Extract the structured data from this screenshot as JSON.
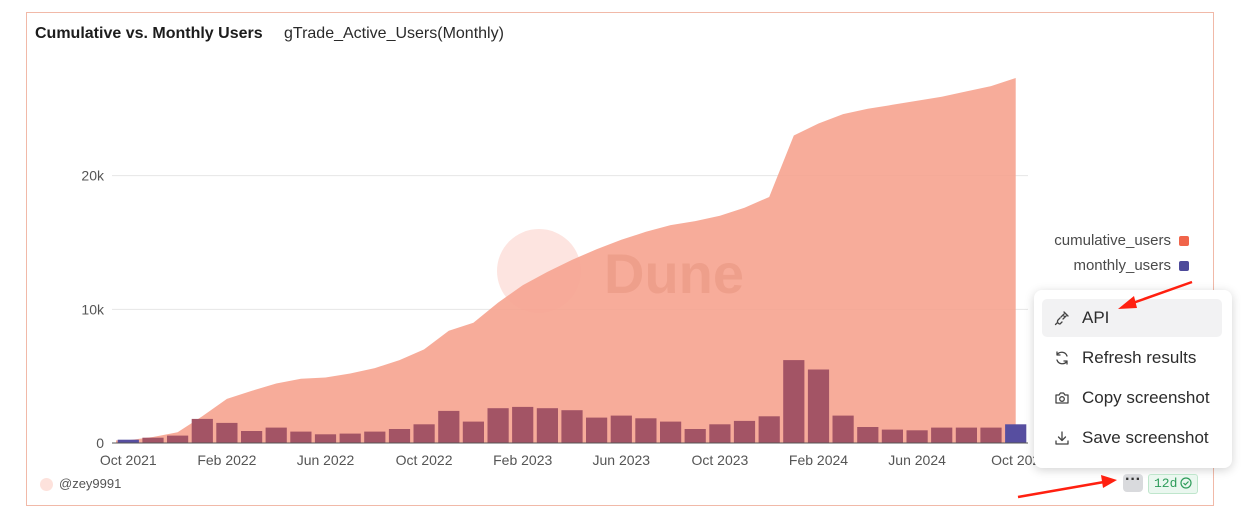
{
  "header": {
    "title": "Cumulative vs. Monthly Users",
    "subtitle": "gTrade_Active_Users(Monthly)"
  },
  "watermark": {
    "text": "Dune"
  },
  "footer": {
    "author": "@zey9991",
    "age_badge": "12d"
  },
  "menu": {
    "items": [
      {
        "label": "API",
        "icon": "api-plug-icon"
      },
      {
        "label": "Refresh results",
        "icon": "refresh-icon"
      },
      {
        "label": "Copy screenshot",
        "icon": "camera-icon"
      },
      {
        "label": "Save screenshot",
        "icon": "download-icon"
      }
    ]
  },
  "colors": {
    "cumulative": "#f08a6e",
    "monthly": "#5b4a9a",
    "grid": "#e6e6e6"
  },
  "chart_data": {
    "type": "bar",
    "title": "Cumulative vs. Monthly Users",
    "subtitle": "gTrade_Active_Users(Monthly)",
    "x_tick_labels": [
      "Oct 2021",
      "Feb 2022",
      "Jun 2022",
      "Oct 2022",
      "Feb 2023",
      "Jun 2023",
      "Oct 2023",
      "Feb 2024",
      "Jun 2024",
      "Oct 202"
    ],
    "y_tick_labels": [
      "0",
      "10k",
      "20k"
    ],
    "y_ticks": [
      0,
      10000,
      20000
    ],
    "ylim": [
      0,
      28500
    ],
    "xlabel": "",
    "ylabel": "",
    "legend_position": "right",
    "categories": [
      "2021-10",
      "2021-11",
      "2021-12",
      "2022-01",
      "2022-02",
      "2022-03",
      "2022-04",
      "2022-05",
      "2022-06",
      "2022-07",
      "2022-08",
      "2022-09",
      "2022-10",
      "2022-11",
      "2022-12",
      "2023-01",
      "2023-02",
      "2023-03",
      "2023-04",
      "2023-05",
      "2023-06",
      "2023-07",
      "2023-08",
      "2023-09",
      "2023-10",
      "2023-11",
      "2023-12",
      "2024-01",
      "2024-02",
      "2024-03",
      "2024-04",
      "2024-05",
      "2024-06",
      "2024-07",
      "2024-08",
      "2024-09",
      "2024-10"
    ],
    "series": [
      {
        "name": "cumulative_users",
        "type": "area",
        "values": [
          200,
          450,
          800,
          2000,
          3300,
          3900,
          4450,
          4800,
          4900,
          5200,
          5600,
          6200,
          7000,
          8400,
          9000,
          10500,
          11800,
          12800,
          13700,
          14500,
          15200,
          15800,
          16300,
          16600,
          17000,
          17600,
          18400,
          23000,
          23900,
          24600,
          25000,
          25300,
          25600,
          25900,
          26300,
          26700,
          27300
        ]
      },
      {
        "name": "monthly_users",
        "type": "bar",
        "values": [
          250,
          400,
          550,
          1800,
          1500,
          900,
          1150,
          850,
          650,
          700,
          850,
          1050,
          1400,
          2400,
          1600,
          2600,
          2700,
          2600,
          2450,
          1900,
          2050,
          1850,
          1600,
          1050,
          1400,
          1650,
          2000,
          6200,
          5500,
          2050,
          1200,
          1000,
          950,
          1150,
          1150,
          1150,
          1400
        ]
      }
    ],
    "legend": [
      "cumulative_users",
      "monthly_users"
    ]
  }
}
